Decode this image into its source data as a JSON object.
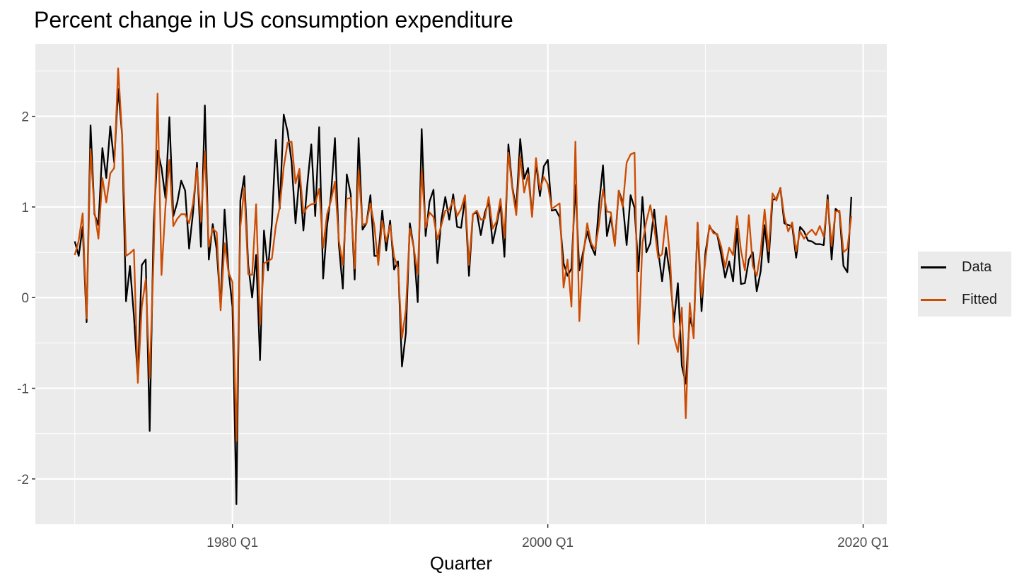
{
  "chart_data": {
    "type": "line",
    "title": "Percent change in US consumption expenditure",
    "xlabel": "Quarter",
    "ylabel": "",
    "xlim": [
      1967.5,
      2021.5
    ],
    "ylim": [
      -2.5,
      2.8
    ],
    "x_ticks": [
      {
        "value": 1980,
        "label": "1980 Q1"
      },
      {
        "value": 2000,
        "label": "2000 Q1"
      },
      {
        "value": 2020,
        "label": "2020 Q1"
      }
    ],
    "y_ticks": [
      {
        "value": 2,
        "label": "2"
      },
      {
        "value": 1,
        "label": "1"
      },
      {
        "value": 0,
        "label": "0"
      },
      {
        "value": -1,
        "label": "-1"
      },
      {
        "value": -2,
        "label": "-2"
      }
    ],
    "x_start": 1970,
    "x_step": 0.25,
    "grid": true,
    "legend_position": "right",
    "series": [
      {
        "name": "Data",
        "color": "#000000",
        "values": [
          0.62,
          0.46,
          0.78,
          -0.27,
          1.9,
          0.92,
          0.8,
          1.65,
          1.32,
          1.89,
          1.49,
          2.3,
          1.8,
          -0.04,
          0.35,
          -0.2,
          -0.9,
          0.36,
          0.42,
          -1.47,
          0.8,
          1.62,
          1.43,
          1.1,
          1.99,
          0.9,
          1.05,
          1.29,
          1.18,
          0.54,
          0.94,
          1.49,
          0.56,
          2.12,
          0.42,
          0.81,
          0.53,
          -0.1,
          0.97,
          0.3,
          -0.1,
          -2.28,
          1.07,
          1.34,
          0.36,
          0.0,
          0.47,
          -0.69,
          0.74,
          0.3,
          0.82,
          1.74,
          0.98,
          2.02,
          1.83,
          1.5,
          0.82,
          1.35,
          0.74,
          1.25,
          1.69,
          0.9,
          1.88,
          0.21,
          0.79,
          1.13,
          1.76,
          0.58,
          0.1,
          1.36,
          1.14,
          0.2,
          1.76,
          0.75,
          0.82,
          1.13,
          0.46,
          0.46,
          0.96,
          0.52,
          0.85,
          0.31,
          0.4,
          -0.76,
          -0.39,
          0.82,
          0.55,
          -0.05,
          1.86,
          0.68,
          1.06,
          1.19,
          0.38,
          0.86,
          1.11,
          0.86,
          1.14,
          0.78,
          0.77,
          1.1,
          0.24,
          0.92,
          0.94,
          0.69,
          0.93,
          1.06,
          0.6,
          0.8,
          1.03,
          0.45,
          1.69,
          1.22,
          0.98,
          1.75,
          1.31,
          1.43,
          0.9,
          1.49,
          1.12,
          1.45,
          1.52,
          0.96,
          0.97,
          0.89,
          0.38,
          0.24,
          0.32,
          1.24,
          0.3,
          0.51,
          0.73,
          0.57,
          0.47,
          1.03,
          1.46,
          0.68,
          0.89,
          0.58,
          1.18,
          1.05,
          0.58,
          1.13,
          0.99,
          0.29,
          1.11,
          0.5,
          0.6,
          0.97,
          0.52,
          0.18,
          0.55,
          0.25,
          -0.27,
          0.16,
          -0.75,
          -0.95,
          -0.22,
          -0.38,
          0.82,
          -0.15,
          0.5,
          0.78,
          0.73,
          0.69,
          0.47,
          0.22,
          0.4,
          0.18,
          0.76,
          0.15,
          0.16,
          0.42,
          0.5,
          0.07,
          0.29,
          0.8,
          0.39,
          1.08,
          1.09,
          1.21,
          0.82,
          0.8,
          0.79,
          0.44,
          0.78,
          0.73,
          0.63,
          0.62,
          0.59,
          0.59,
          0.58,
          1.13,
          0.42,
          0.98,
          0.94,
          0.35,
          0.28,
          1.11
        ]
      },
      {
        "name": "Fitted",
        "color": "#cc4c02",
        "values": [
          0.47,
          0.63,
          0.93,
          -0.23,
          1.64,
          0.95,
          0.65,
          1.32,
          1.05,
          1.37,
          1.43,
          2.53,
          1.8,
          0.46,
          0.49,
          0.53,
          -0.94,
          -0.1,
          0.2,
          -0.89,
          0.44,
          2.25,
          0.25,
          1.0,
          1.52,
          0.79,
          0.87,
          0.92,
          0.92,
          0.82,
          1.04,
          1.43,
          0.84,
          1.61,
          0.56,
          0.76,
          0.72,
          -0.14,
          0.6,
          0.28,
          0.17,
          -1.58,
          0.78,
          1.21,
          0.26,
          0.25,
          1.03,
          -0.3,
          0.38,
          0.4,
          0.43,
          0.79,
          1.0,
          1.44,
          1.71,
          1.72,
          1.26,
          1.42,
          0.93,
          1.0,
          1.03,
          1.04,
          1.2,
          0.55,
          0.92,
          1.07,
          1.28,
          0.63,
          0.36,
          1.09,
          1.1,
          0.32,
          1.41,
          0.8,
          0.82,
          1.04,
          0.79,
          0.36,
          0.85,
          0.62,
          0.8,
          0.45,
          0.33,
          -0.45,
          -0.13,
          0.76,
          0.55,
          0.26,
          1.41,
          0.77,
          0.94,
          0.89,
          0.64,
          0.8,
          0.96,
          0.97,
          1.08,
          0.9,
          0.98,
          1.13,
          0.36,
          0.92,
          0.96,
          0.86,
          0.87,
          1.11,
          0.76,
          0.84,
          1.09,
          0.66,
          1.6,
          1.2,
          0.91,
          1.56,
          1.16,
          1.36,
          0.89,
          1.54,
          1.19,
          1.33,
          1.25,
          0.98,
          1.01,
          1.04,
          0.11,
          0.42,
          -0.1,
          1.72,
          -0.26,
          0.47,
          0.82,
          0.6,
          0.53,
          0.81,
          1.19,
          0.95,
          0.94,
          0.57,
          1.18,
          1.0,
          1.49,
          1.58,
          1.6,
          -0.51,
          0.6,
          0.84,
          1.02,
          0.78,
          0.44,
          0.48,
          0.9,
          0.45,
          -0.43,
          -0.6,
          -0.11,
          -1.33,
          -0.06,
          -0.45,
          0.83,
          0.0,
          0.42,
          0.8,
          0.71,
          0.7,
          0.56,
          0.33,
          0.55,
          0.47,
          0.9,
          0.52,
          0.3,
          0.91,
          0.35,
          0.24,
          0.51,
          0.97,
          0.51,
          1.15,
          1.07,
          1.21,
          0.89,
          0.73,
          0.83,
          0.51,
          0.73,
          0.65,
          0.71,
          0.75,
          0.69,
          0.79,
          0.67,
          1.08,
          0.57,
          0.95,
          0.96,
          0.5,
          0.54,
          0.9
        ]
      }
    ]
  }
}
